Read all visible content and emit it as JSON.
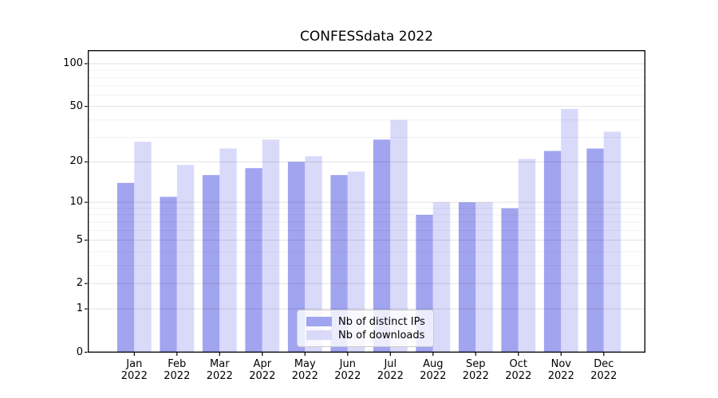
{
  "title": "CONFESSdata 2022",
  "chart_data": {
    "type": "bar",
    "title": "CONFESSdata 2022",
    "categories": [
      "Jan 2022",
      "Feb 2022",
      "Mar 2022",
      "Apr 2022",
      "May 2022",
      "Jun 2022",
      "Jul 2022",
      "Aug 2022",
      "Sep 2022",
      "Oct 2022",
      "Nov 2022",
      "Dec 2022"
    ],
    "series": [
      {
        "name": "Nb of distinct IPs",
        "color": "#a1a4ef",
        "values": [
          14,
          11,
          16,
          18,
          20,
          16,
          29,
          8,
          10,
          9,
          24,
          25
        ]
      },
      {
        "name": "Nb of downloads",
        "color": "#d9dafa",
        "values": [
          28,
          19,
          25,
          29,
          22,
          17,
          40,
          10,
          10,
          21,
          48,
          33
        ]
      }
    ],
    "yscale": "log1p",
    "ylim": [
      0,
      123
    ],
    "yticks_labeled": [
      0,
      1,
      2,
      5,
      10,
      20,
      50,
      100
    ],
    "yticks_minor": [
      3,
      4,
      6,
      7,
      8,
      9,
      30,
      40,
      60,
      70,
      80,
      90
    ],
    "grid": "horizontal",
    "xlabel": "",
    "ylabel": "",
    "legend_position": "lower center"
  },
  "colors": {
    "background": "#ffffff",
    "axis": "#000000",
    "grid_major": "rgba(0,0,0,0.12)",
    "grid_minor": "rgba(0,0,0,0.055)",
    "ips_bar": "#a1a4ef",
    "downloads_bar": "#d9dafa",
    "legend_border": "#cccccc"
  }
}
